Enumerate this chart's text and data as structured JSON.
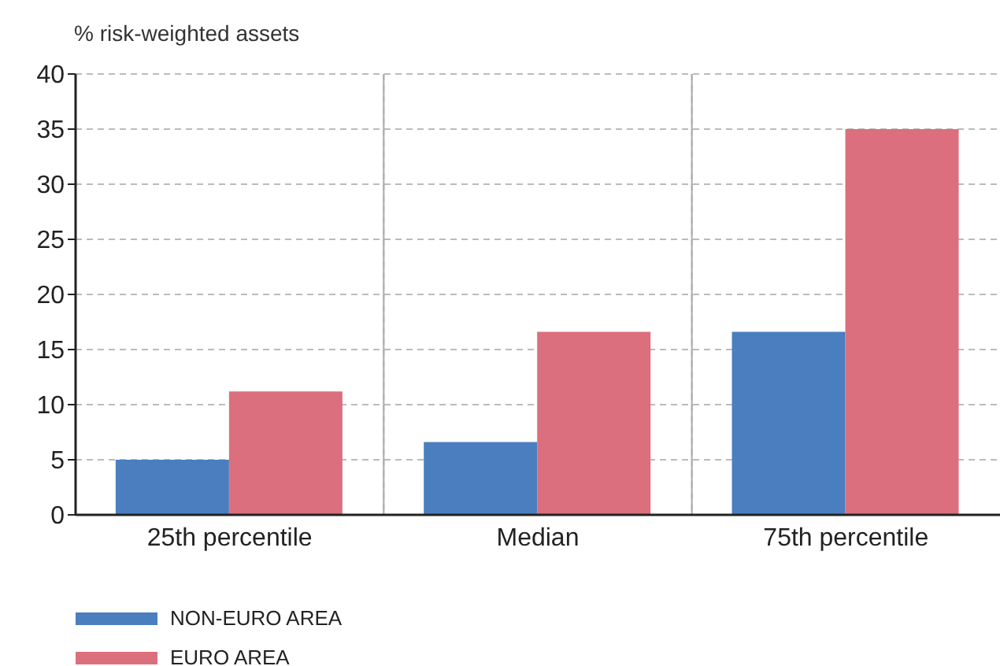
{
  "chart_data": {
    "type": "bar",
    "ylabel": "% risk-weighted assets",
    "categories": [
      "25th percentile",
      "Median",
      "75th percentile"
    ],
    "series": [
      {
        "name": "NON-EURO AREA",
        "color": "#4a7ebf",
        "values": [
          5,
          6.6,
          16.6
        ]
      },
      {
        "name": "EURO AREA",
        "color": "#db6f7d",
        "values": [
          11.2,
          16.6,
          35
        ]
      }
    ],
    "ylim": [
      0,
      40
    ],
    "yticks": [
      0,
      5,
      10,
      15,
      20,
      25,
      30,
      35,
      40
    ],
    "grid": true,
    "legend": "bottom"
  }
}
